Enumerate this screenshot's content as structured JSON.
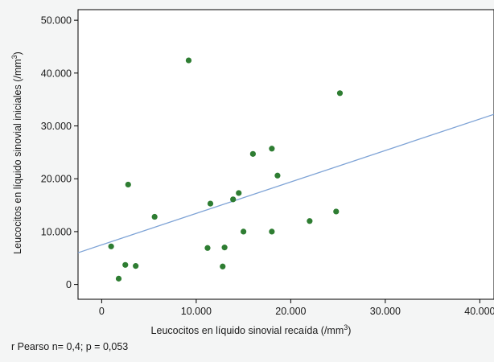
{
  "chart_data": {
    "type": "scatter",
    "xlabel": "Leucocitos en líquido sinovial recaída (/mm",
    "xlabel_sup": "3",
    "xlabel_tail": ")",
    "ylabel": "Leucocitos en líquido sinovial iniciales (/mm",
    "ylabel_sup": "3",
    "ylabel_tail": ")",
    "xlim": [
      -2500,
      41500
    ],
    "ylim": [
      -2800,
      52000
    ],
    "x_ticks": [
      {
        "value": 0,
        "label": "0"
      },
      {
        "value": 10000,
        "label": "10.000"
      },
      {
        "value": 20000,
        "label": "20.000"
      },
      {
        "value": 30000,
        "label": "30.000"
      },
      {
        "value": 40000,
        "label": "40.000"
      }
    ],
    "y_ticks": [
      {
        "value": 0,
        "label": "0"
      },
      {
        "value": 10000,
        "label": "10.000"
      },
      {
        "value": 20000,
        "label": "20.000"
      },
      {
        "value": 30000,
        "label": "30.000"
      },
      {
        "value": 40000,
        "label": "40.000"
      },
      {
        "value": 50000,
        "label": "50.000"
      }
    ],
    "grid": false,
    "point_color": "#2e7d32",
    "line_color": "#7ea3d6",
    "series": [
      {
        "points": [
          [
            1000,
            7200
          ],
          [
            1800,
            1100
          ],
          [
            2500,
            3700
          ],
          [
            2800,
            18900
          ],
          [
            3600,
            3500
          ],
          [
            5600,
            12800
          ],
          [
            9200,
            42400
          ],
          [
            11200,
            6900
          ],
          [
            11500,
            15300
          ],
          [
            12800,
            3400
          ],
          [
            13000,
            7000
          ],
          [
            13900,
            16100
          ],
          [
            14500,
            17300
          ],
          [
            15000,
            10000
          ],
          [
            16000,
            24700
          ],
          [
            18000,
            25700
          ],
          [
            18000,
            10000
          ],
          [
            18600,
            20600
          ],
          [
            22000,
            12000
          ],
          [
            24800,
            13800
          ],
          [
            25200,
            36200
          ]
        ]
      }
    ],
    "regression": {
      "x": [
        -2500,
        41500
      ],
      "y": [
        6000,
        32200
      ]
    }
  },
  "footnote": "r Pearso n= 0,4; p = 0,053"
}
